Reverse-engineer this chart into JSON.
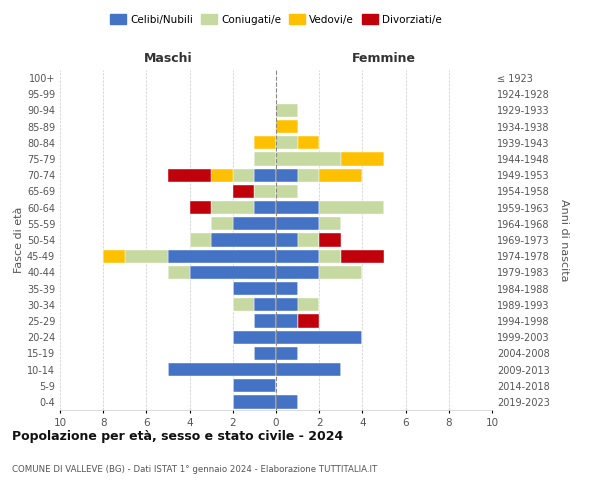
{
  "age_groups": [
    "0-4",
    "5-9",
    "10-14",
    "15-19",
    "20-24",
    "25-29",
    "30-34",
    "35-39",
    "40-44",
    "45-49",
    "50-54",
    "55-59",
    "60-64",
    "65-69",
    "70-74",
    "75-79",
    "80-84",
    "85-89",
    "90-94",
    "95-99",
    "100+"
  ],
  "birth_years": [
    "2019-2023",
    "2014-2018",
    "2009-2013",
    "2004-2008",
    "1999-2003",
    "1994-1998",
    "1989-1993",
    "1984-1988",
    "1979-1983",
    "1974-1978",
    "1969-1973",
    "1964-1968",
    "1959-1963",
    "1954-1958",
    "1949-1953",
    "1944-1948",
    "1939-1943",
    "1934-1938",
    "1929-1933",
    "1924-1928",
    "≤ 1923"
  ],
  "colors": {
    "celibi": "#4472c4",
    "coniugati": "#c5d9a0",
    "vedovi": "#ffc000",
    "divorziati": "#c0000b"
  },
  "males": {
    "celibi": [
      2,
      2,
      5,
      1,
      2,
      1,
      1,
      2,
      4,
      5,
      3,
      2,
      1,
      0,
      1,
      0,
      0,
      0,
      0,
      0,
      0
    ],
    "coniugati": [
      0,
      0,
      0,
      0,
      0,
      0,
      1,
      0,
      1,
      2,
      1,
      1,
      2,
      1,
      1,
      1,
      0,
      0,
      0,
      0,
      0
    ],
    "vedovi": [
      0,
      0,
      0,
      0,
      0,
      0,
      0,
      0,
      0,
      1,
      0,
      0,
      0,
      0,
      1,
      0,
      1,
      0,
      0,
      0,
      0
    ],
    "divorziati": [
      0,
      0,
      0,
      0,
      0,
      0,
      0,
      0,
      0,
      0,
      0,
      0,
      1,
      1,
      2,
      0,
      0,
      0,
      0,
      0,
      0
    ]
  },
  "females": {
    "celibi": [
      1,
      0,
      3,
      1,
      4,
      1,
      1,
      1,
      2,
      2,
      1,
      2,
      2,
      0,
      1,
      0,
      0,
      0,
      0,
      0,
      0
    ],
    "coniugati": [
      0,
      0,
      0,
      0,
      0,
      0,
      1,
      0,
      2,
      1,
      1,
      1,
      3,
      1,
      1,
      3,
      1,
      0,
      1,
      0,
      0
    ],
    "vedovi": [
      0,
      0,
      0,
      0,
      0,
      0,
      0,
      0,
      0,
      0,
      0,
      0,
      0,
      0,
      2,
      2,
      1,
      1,
      0,
      0,
      0
    ],
    "divorziati": [
      0,
      0,
      0,
      0,
      0,
      1,
      0,
      0,
      0,
      2,
      1,
      0,
      0,
      0,
      0,
      0,
      0,
      0,
      0,
      0,
      0
    ]
  },
  "xlim": 10,
  "title": "Popolazione per età, sesso e stato civile - 2024",
  "subtitle": "COMUNE DI VALLEVE (BG) - Dati ISTAT 1° gennaio 2024 - Elaborazione TUTTITALIA.IT",
  "xlabel_left": "Maschi",
  "xlabel_right": "Femmine",
  "ylabel_left": "Fasce di età",
  "ylabel_right": "Anni di nascita",
  "legend_labels": [
    "Celibi/Nubili",
    "Coniugati/e",
    "Vedovi/e",
    "Divorziati/e"
  ],
  "background_color": "#ffffff",
  "grid_color": "#cccccc"
}
